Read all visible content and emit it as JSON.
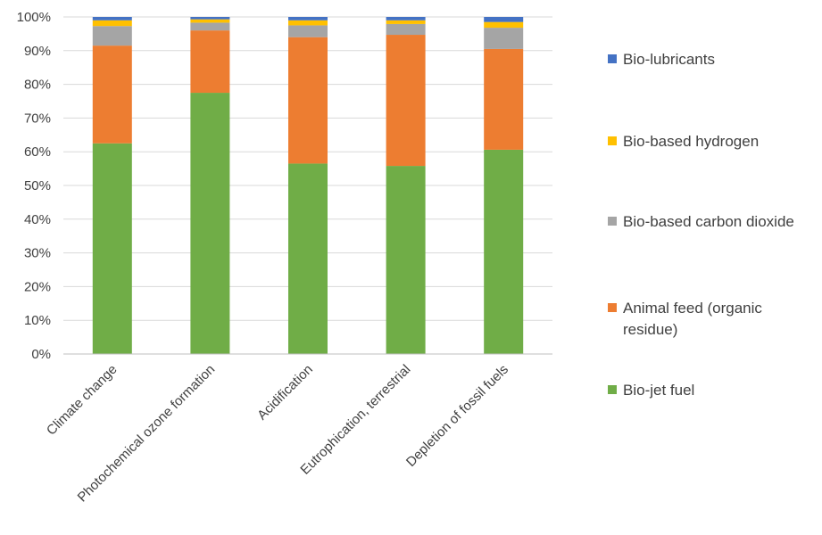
{
  "chart_data": {
    "type": "bar",
    "stacked": true,
    "percent": true,
    "categories": [
      "Climate change",
      "Photochemical ozone formation",
      "Acidification",
      "Eutrophication, terrestrial",
      "Depletion of fossil fuels"
    ],
    "series": [
      {
        "name": "Bio-jet fuel",
        "color": "#70ad47",
        "values": [
          62.5,
          77.5,
          56.5,
          55.8,
          60.6
        ]
      },
      {
        "name": "Animal feed (organic residue)",
        "color": "#ed7d31",
        "values": [
          29.0,
          18.5,
          37.5,
          38.9,
          29.9
        ]
      },
      {
        "name": "Bio-based carbon dioxide",
        "color": "#a5a5a5",
        "values": [
          5.8,
          2.3,
          3.5,
          3.2,
          6.3
        ]
      },
      {
        "name": "Bio-based hydrogen",
        "color": "#ffc000",
        "values": [
          1.7,
          1.0,
          1.5,
          1.1,
          1.7
        ]
      },
      {
        "name": "Bio-lubricants",
        "color": "#4472c4",
        "values": [
          1.0,
          0.7,
          1.0,
          1.0,
          1.5
        ]
      }
    ],
    "legend_order": [
      "Bio-lubricants",
      "Bio-based hydrogen",
      "Bio-based carbon dioxide",
      "Animal feed (organic residue)",
      "Bio-jet fuel"
    ],
    "y_ticks": [
      "0%",
      "10%",
      "20%",
      "30%",
      "40%",
      "50%",
      "60%",
      "70%",
      "80%",
      "90%",
      "100%"
    ],
    "ylim": [
      0,
      100
    ],
    "grid": true,
    "legend_position": "right",
    "gridline_color": "#d9d9d9",
    "axis_color": "#bfbfbf"
  }
}
